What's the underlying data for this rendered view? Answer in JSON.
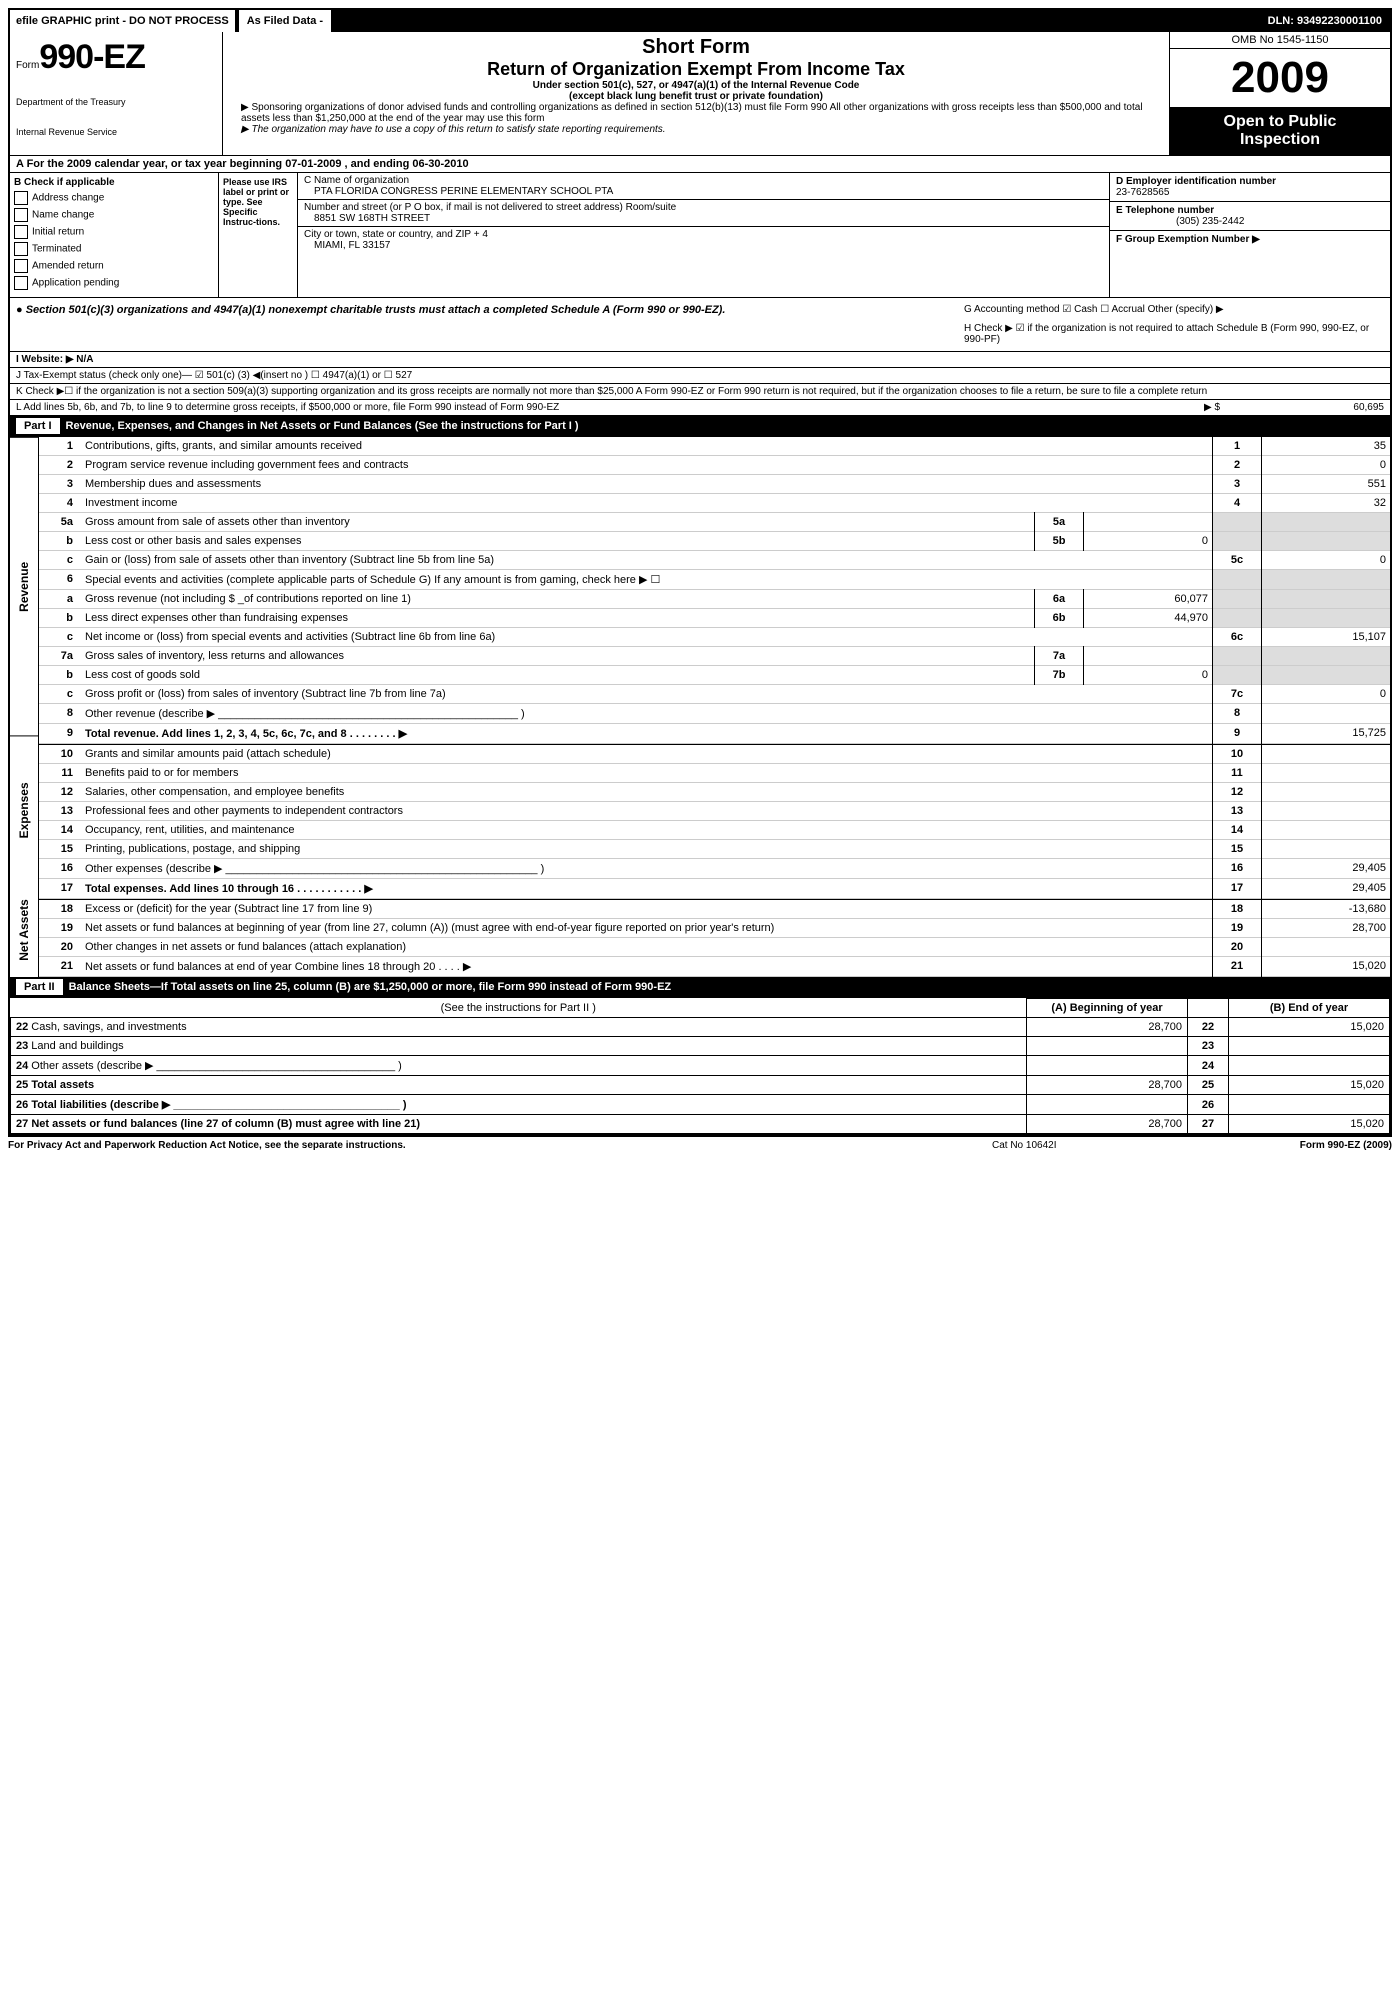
{
  "topbar": {
    "left": "efile GRAPHIC print - DO NOT PROCESS",
    "mid": "As Filed Data -",
    "right": "DLN: 93492230001100"
  },
  "header": {
    "form_prefix": "Form",
    "form_number": "990-EZ",
    "dept1": "Department of the Treasury",
    "dept2": "Internal Revenue Service",
    "short_form": "Short Form",
    "title": "Return of Organization Exempt From Income Tax",
    "subtitle1": "Under section 501(c), 527, or 4947(a)(1) of the Internal Revenue Code",
    "subtitle2": "(except black lung benefit trust or private foundation)",
    "note1": "▶ Sponsoring organizations of donor advised funds and controlling organizations as defined in section 512(b)(13) must file Form 990  All other organizations with gross receipts less than $500,000 and total assets less than $1,250,000 at the end of the year may use this form",
    "note2": "▶ The organization may have to use a copy of this return to satisfy state reporting requirements.",
    "omb": "OMB No  1545-1150",
    "year": "2009",
    "otp1": "Open to Public",
    "otp2": "Inspection"
  },
  "rowA": "A  For the 2009 calendar year, or tax year beginning 07-01-2009               , and ending 06-30-2010",
  "colB": {
    "title": "B  Check if applicable",
    "items": [
      "Address change",
      "Name change",
      "Initial return",
      "Terminated",
      "Amended return",
      "Application pending"
    ]
  },
  "please": "Please use IRS label or print or type. See Specific Instruc-tions.",
  "org": {
    "c_label": "C Name of organization",
    "c_val": "PTA FLORIDA CONGRESS PERINE ELEMENTARY SCHOOL PTA",
    "addr_label": "Number and street (or P O  box, if mail is not delivered to street address) Room/suite",
    "addr_val": "8851 SW 168TH STREET",
    "city_label": "City or town, state or country, and ZIP + 4",
    "city_val": "MIAMI, FL  33157"
  },
  "colD": {
    "d_label": "D Employer identification number",
    "d_val": "23-7628565",
    "e_label": "E Telephone number",
    "e_val": "(305) 235-2442",
    "f_label": "F Group Exemption Number   ▶"
  },
  "sec501": {
    "left": "● Section 501(c)(3) organizations and 4947(a)(1) nonexempt charitable trusts must attach a completed Schedule A (Form 990 or 990-EZ).",
    "g": "G Accounting method   ☑ Cash  ☐ Accrual  Other (specify) ▶",
    "h": "H  Check ▶  ☑  if the organization is not required to attach Schedule B (Form 990, 990-EZ, or 990-PF)"
  },
  "lineI": "I Website: ▶  N/A",
  "lineJ": "J Tax-Exempt status (check only one)— ☑ 501(c) (3) ◀(insert no ) ☐ 4947(a)(1) or ☐  527",
  "lineK": "K Check ▶☐ if the organization is not a section 509(a)(3) supporting organization and its gross receipts are normally not more than $25,000  A Form 990-EZ or Form 990 return is not required, but if the organization chooses to file a return, be sure to file a complete return",
  "lineL": {
    "text": "L Add lines 5b, 6b, and 7b, to line 9 to determine gross receipts, if $500,000 or more, file Form 990 instead of Form 990-EZ",
    "arrow": "▶ $",
    "val": "60,695"
  },
  "part1": {
    "tag": "Part I",
    "title": "Revenue, Expenses, and Changes in Net Assets or Fund Balances (See the instructions for Part I )"
  },
  "sidebar": {
    "rev": "Revenue",
    "exp": "Expenses",
    "na": "Net Assets"
  },
  "lines": [
    {
      "n": "1",
      "d": "Contributions, gifts, grants, and similar amounts received",
      "r": "1",
      "v": "35"
    },
    {
      "n": "2",
      "d": "Program service revenue including government fees and contracts",
      "r": "2",
      "v": "0"
    },
    {
      "n": "3",
      "d": "Membership dues and assessments",
      "r": "3",
      "v": "551"
    },
    {
      "n": "4",
      "d": "Investment income",
      "r": "4",
      "v": "32"
    },
    {
      "n": "5a",
      "d": "Gross amount from sale of assets other than inventory",
      "mn": "5a",
      "mv": "",
      "shade": true
    },
    {
      "n": "b",
      "d": "Less  cost or other basis and sales expenses",
      "mn": "5b",
      "mv": "0",
      "shade": true
    },
    {
      "n": "c",
      "d": "Gain or (loss) from sale of assets other than inventory (Subtract line 5b from line 5a)",
      "r": "5c",
      "v": "0"
    },
    {
      "n": "6",
      "d": "Special events and activities (complete applicable parts of Schedule G)  If any amount is from gaming, check here ▶  ☐",
      "shade": true
    },
    {
      "n": "a",
      "d": "Gross revenue (not including $ _of contributions reported on line 1)",
      "mn": "6a",
      "mv": "60,077",
      "shade": true
    },
    {
      "n": "b",
      "d": "Less  direct expenses other than fundraising expenses",
      "mn": "6b",
      "mv": "44,970",
      "shade": true
    },
    {
      "n": "c",
      "d": "Net income or (loss) from special events and activities (Subtract line 6b from line 6a)",
      "r": "6c",
      "v": "15,107"
    },
    {
      "n": "7a",
      "d": "Gross sales of inventory, less returns and allowances",
      "mn": "7a",
      "mv": "",
      "shade": true
    },
    {
      "n": "b",
      "d": "Less  cost of goods sold",
      "mn": "7b",
      "mv": "0",
      "shade": true
    },
    {
      "n": "c",
      "d": "Gross profit or (loss) from sales of inventory (Subtract line 7b from line 7a)",
      "r": "7c",
      "v": "0"
    },
    {
      "n": "8",
      "d": "Other revenue (describe ▶ _________________________________________________ )",
      "r": "8",
      "v": ""
    },
    {
      "n": "9",
      "d": "Total revenue. Add lines 1, 2, 3, 4, 5c, 6c, 7c, and 8     .    .    .    .    .    .    .    .   ▶",
      "r": "9",
      "v": "15,725",
      "bold": true
    }
  ],
  "exp_lines": [
    {
      "n": "10",
      "d": "Grants and similar amounts paid (attach schedule)",
      "r": "10",
      "v": ""
    },
    {
      "n": "11",
      "d": "Benefits paid to or for members",
      "r": "11",
      "v": ""
    },
    {
      "n": "12",
      "d": "Salaries, other compensation, and employee benefits",
      "r": "12",
      "v": ""
    },
    {
      "n": "13",
      "d": "Professional fees and other payments to independent contractors",
      "r": "13",
      "v": ""
    },
    {
      "n": "14",
      "d": "Occupancy, rent, utilities, and maintenance",
      "r": "14",
      "v": ""
    },
    {
      "n": "15",
      "d": "Printing, publications, postage, and shipping",
      "r": "15",
      "v": ""
    },
    {
      "n": "16",
      "d": "Other expenses (describe ▶ ___________________________________________________ )",
      "r": "16",
      "v": "29,405"
    },
    {
      "n": "17",
      "d": "Total expenses. Add lines 10 through 16    .    .    .    .    .    .    .    .    .    .    .   ▶",
      "r": "17",
      "v": "29,405",
      "bold": true
    }
  ],
  "na_lines": [
    {
      "n": "18",
      "d": "Excess or (deficit) for the year (Subtract line 17 from line 9)",
      "r": "18",
      "v": "-13,680"
    },
    {
      "n": "19",
      "d": "Net assets or fund balances at beginning of year (from line 27, column (A)) (must agree with end-of-year figure reported on prior year's return)",
      "r": "19",
      "v": "28,700"
    },
    {
      "n": "20",
      "d": "Other changes in net assets or fund balances (attach explanation)",
      "r": "20",
      "v": ""
    },
    {
      "n": "21",
      "d": "Net assets or fund balances at end of year  Combine lines 18 through 20    .    .    .    .   ▶",
      "r": "21",
      "v": "15,020"
    }
  ],
  "part2": {
    "tag": "Part II",
    "title": "Balance Sheets—If Total assets on line 25, column (B) are $1,250,000 or more, file Form 990 instead of Form 990-EZ",
    "instr": "(See the instructions for Part II )",
    "colA": "(A) Beginning of year",
    "colB": "(B) End of year"
  },
  "bs": [
    {
      "n": "22",
      "d": "Cash, savings, and investments",
      "a": "28,700",
      "b": "15,020"
    },
    {
      "n": "23",
      "d": "Land and buildings",
      "a": "",
      "b": ""
    },
    {
      "n": "24",
      "d": "Other assets (describe ▶ _______________________________________ )",
      "a": "",
      "b": ""
    },
    {
      "n": "25",
      "d": "Total assets",
      "a": "28,700",
      "b": "15,020",
      "bold": true
    },
    {
      "n": "26",
      "d": "Total liabilities (describe ▶ _____________________________________ )",
      "a": "",
      "b": "",
      "bold": true
    },
    {
      "n": "27",
      "d": "Net assets or fund balances (line 27 of column (B) must agree with line 21)",
      "a": "28,700",
      "b": "15,020",
      "bold": true
    }
  ],
  "footer": {
    "l": "For Privacy Act and Paperwork Reduction Act Notice, see the separate instructions.",
    "m": "Cat No  10642I",
    "r": "Form 990-EZ (2009)"
  }
}
